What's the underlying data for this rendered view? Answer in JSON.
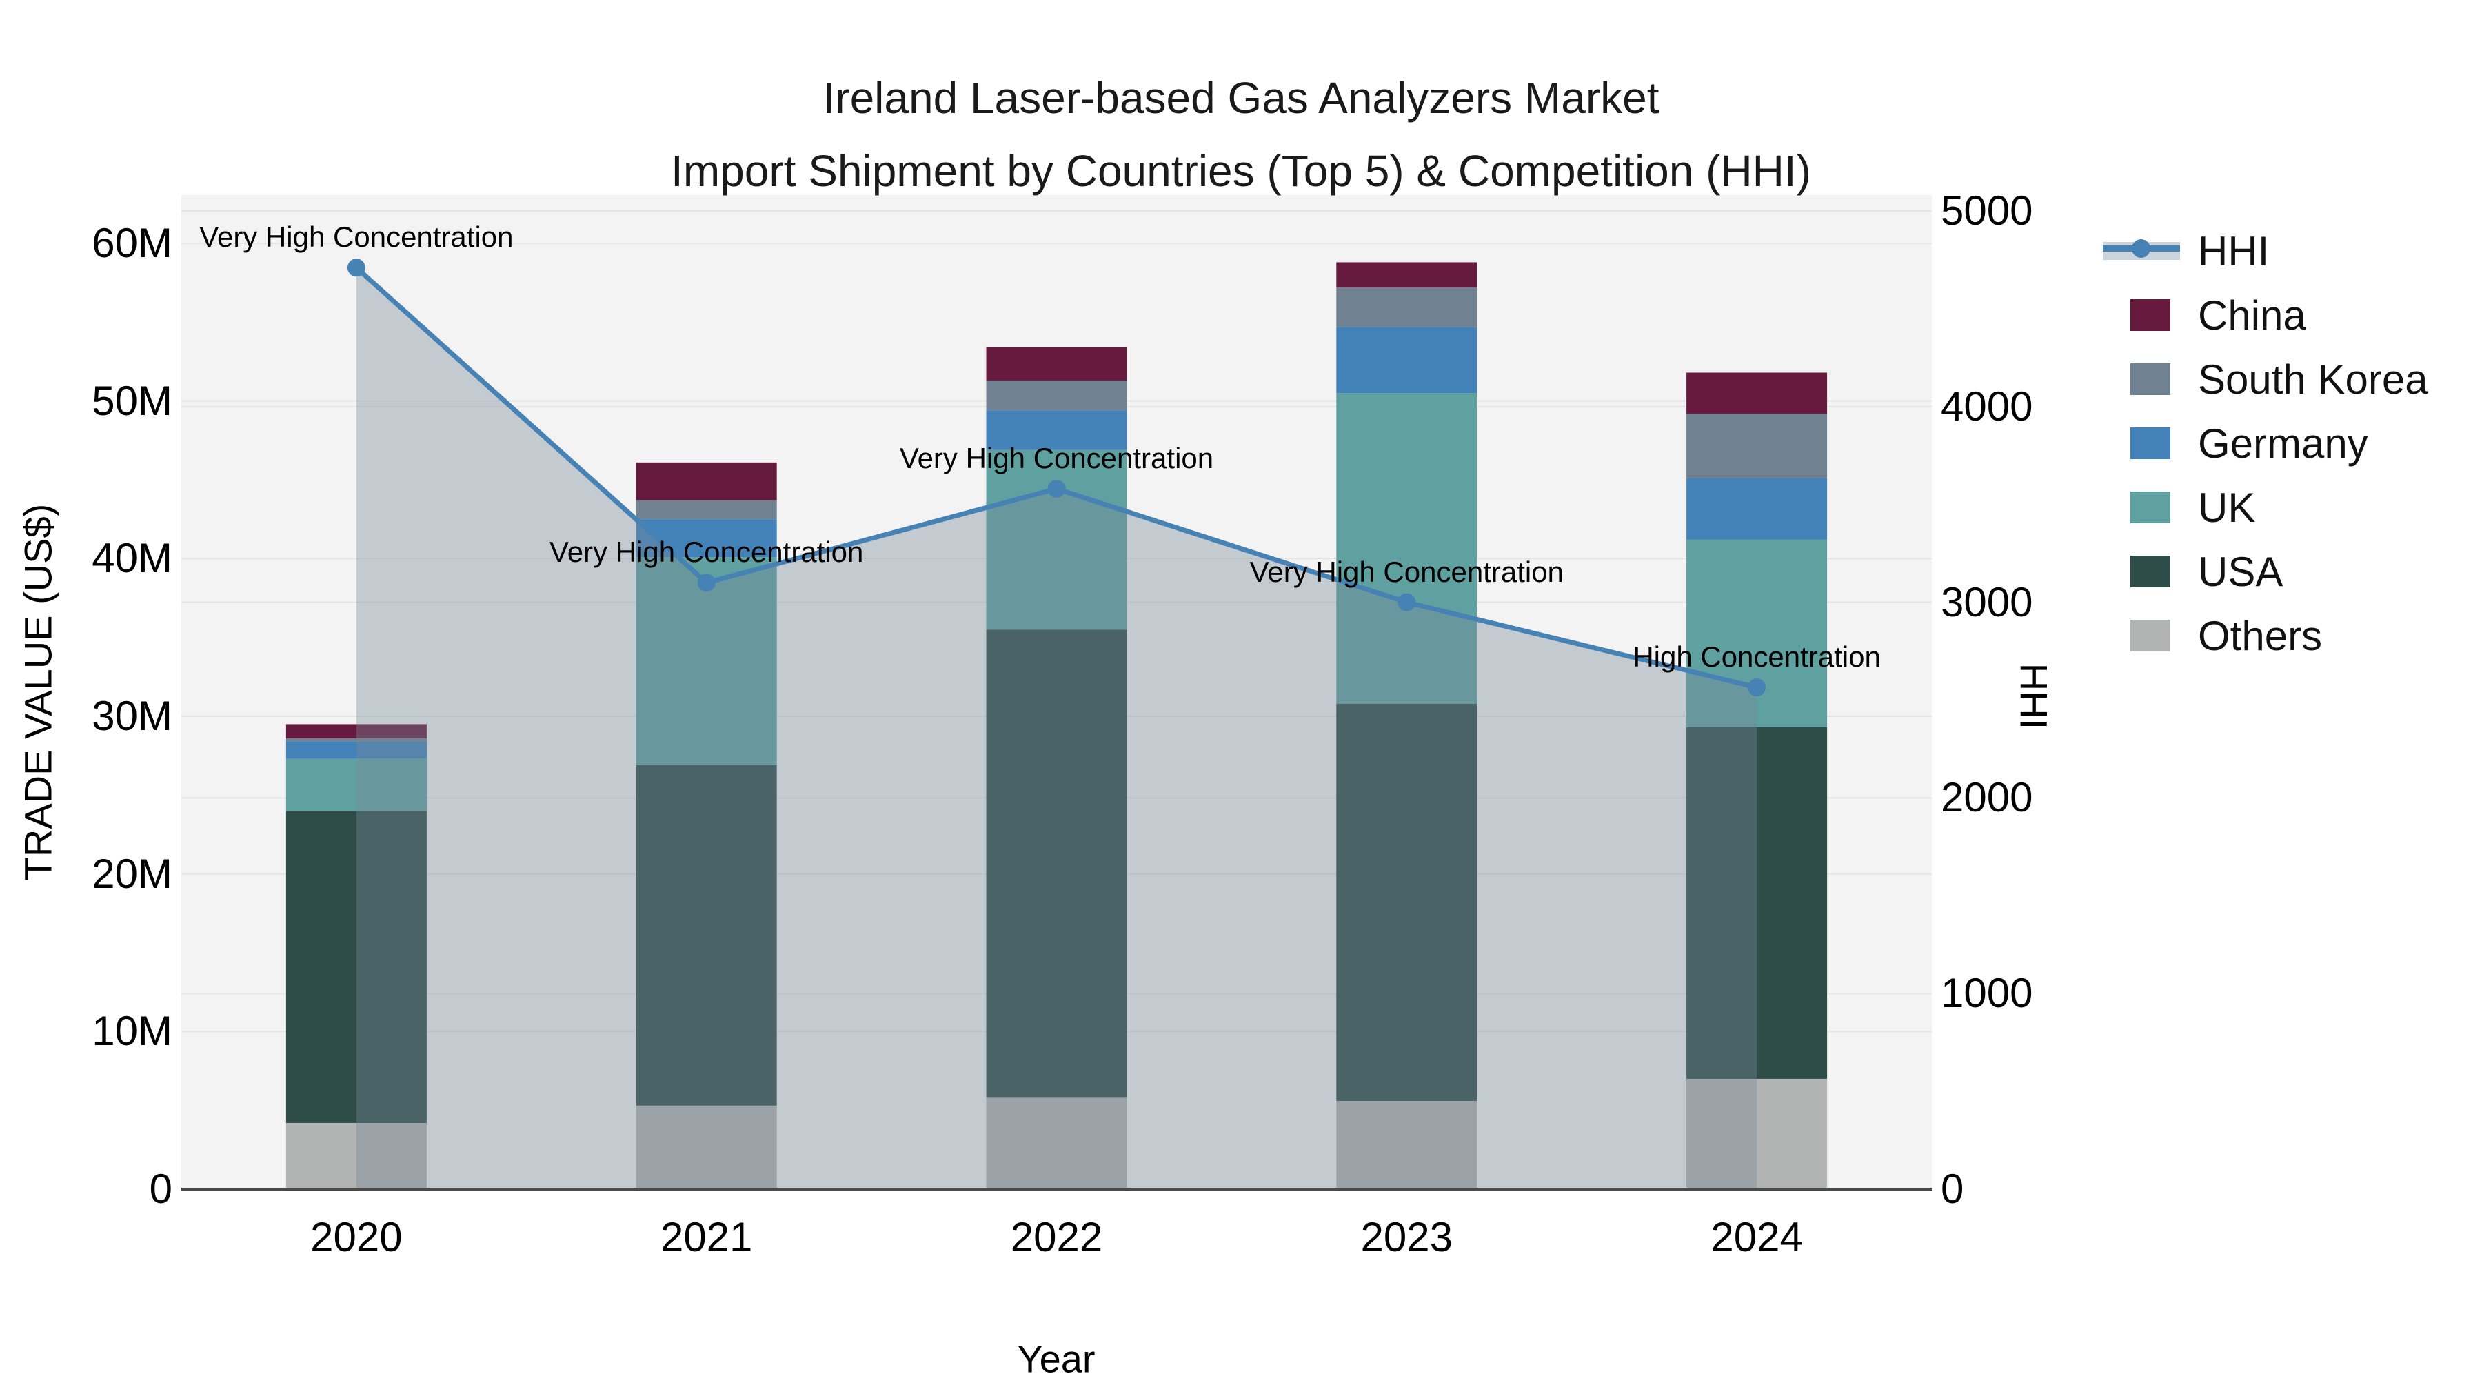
{
  "title": {
    "line1": "Ireland Laser-based Gas Analyzers Market",
    "line2": "Import Shipment by Countries (Top 5) & Competition (HHI)"
  },
  "axes": {
    "left_title": "TRADE VALUE (US$)",
    "left_ticks": [
      "0",
      "10M",
      "20M",
      "30M",
      "40M",
      "50M",
      "60M"
    ],
    "right_title": "HHI",
    "right_ticks": [
      "0",
      "1000",
      "2000",
      "3000",
      "4000",
      "5000"
    ],
    "x_title": "Year",
    "x_ticks": [
      "2020",
      "2021",
      "2022",
      "2023",
      "2024"
    ]
  },
  "legend": {
    "position": "right",
    "items": [
      "HHI",
      "China",
      "South Korea",
      "Germany",
      "UK",
      "USA",
      "Others"
    ]
  },
  "chart_data": {
    "type": "bar",
    "subtype": "stacked bars with overlaid line (secondary axis)",
    "categories": [
      "2020",
      "2021",
      "2022",
      "2023",
      "2024"
    ],
    "value_unit": "million US$",
    "series": [
      {
        "name": "Others",
        "color": "#B2B4B4",
        "values": [
          4.2,
          5.3,
          5.8,
          5.6,
          7.0
        ]
      },
      {
        "name": "USA",
        "color": "#2E4C48",
        "values": [
          19.8,
          21.6,
          29.7,
          25.2,
          22.3
        ]
      },
      {
        "name": "UK",
        "color": "#5FA1A0",
        "values": [
          3.3,
          13.2,
          11.4,
          19.7,
          11.9
        ]
      },
      {
        "name": "Germany",
        "color": "#4382B8",
        "values": [
          1.1,
          2.4,
          2.5,
          4.2,
          3.9
        ]
      },
      {
        "name": "South Korea",
        "color": "#708191",
        "values": [
          0.2,
          1.2,
          1.9,
          2.5,
          4.1
        ]
      },
      {
        "name": "China",
        "color": "#661B3E",
        "values": [
          0.9,
          2.4,
          2.1,
          1.6,
          2.6
        ]
      }
    ],
    "bar_totals": [
      29.5,
      46.1,
      53.4,
      58.8,
      51.8
    ],
    "hhi": {
      "name": "HHI",
      "color": "#4682B4",
      "fill_color": "rgba(119,136,153,0.38)",
      "values": [
        4710,
        3100,
        3580,
        3000,
        2565
      ],
      "annotations": [
        "Very High Concentration",
        "Very High Concentration",
        "Very High Concentration",
        "Very High Concentration",
        "High Concentration"
      ]
    },
    "xlabel": "Year",
    "ylabel_left": "TRADE VALUE (US$)",
    "ylabel_right": "HHI",
    "ylim_left": [
      0,
      63
    ],
    "ylim_right": [
      0,
      5080
    ],
    "grid": true,
    "legend_position": "right"
  },
  "colors": {
    "plot_bg": "#F3F3F3",
    "grid": "#E5E5E5",
    "axis_line": "#4A4A4A",
    "text": "#111111"
  }
}
